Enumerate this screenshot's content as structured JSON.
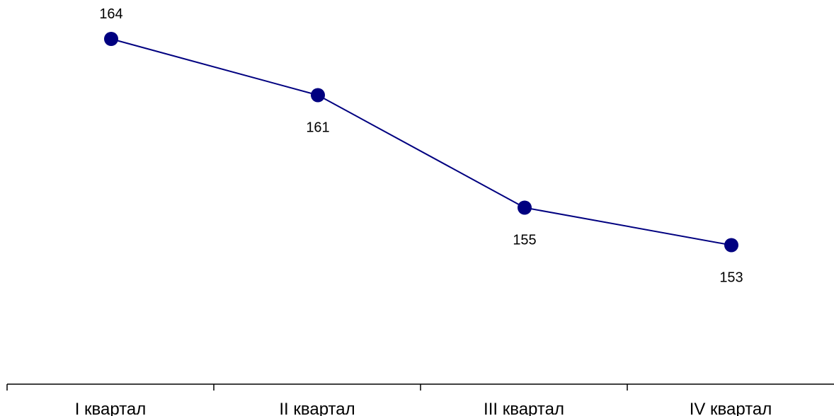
{
  "chart_data": {
    "type": "line",
    "categories": [
      "I квартал",
      "II квартал",
      "III квартал",
      "IV квартал"
    ],
    "series": [
      {
        "values": [
          164,
          161,
          155,
          153
        ],
        "data_labels": [
          "164",
          "161",
          "155",
          "153"
        ],
        "label_positions": [
          "above",
          "below",
          "below",
          "below"
        ]
      }
    ],
    "title": "",
    "xlabel": "",
    "ylabel": "",
    "y_axis_visible": false,
    "grid": false,
    "legend": "none",
    "colors": {
      "line": "#000080",
      "marker": "#000080",
      "axis": "#000000",
      "text": "#000000"
    }
  }
}
